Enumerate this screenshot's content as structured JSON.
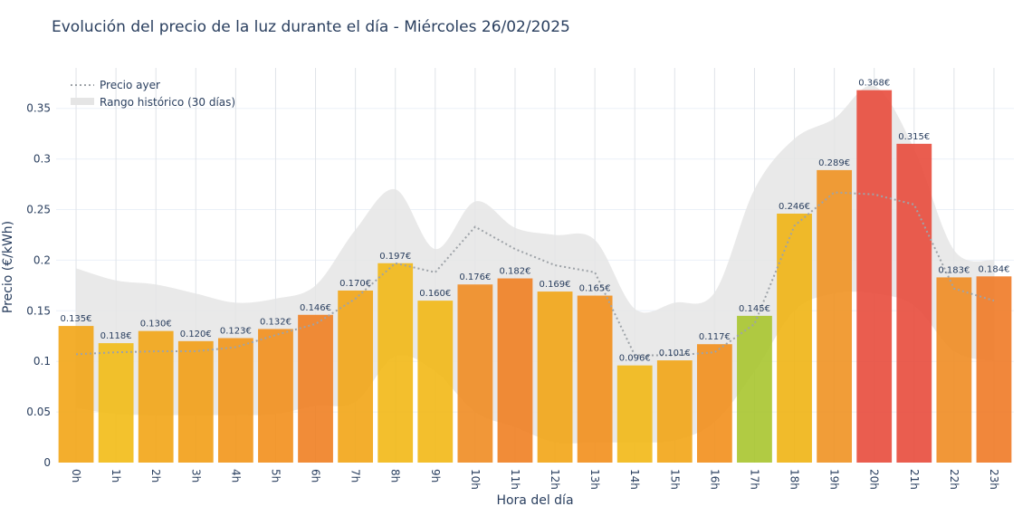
{
  "chart_data": {
    "type": "bar",
    "title": "Evolución del precio de la luz durante el día - Miércoles 26/02/2025",
    "xlabel": "Hora del día",
    "ylabel": "Precio (€/kWh)",
    "categories": [
      "0h",
      "1h",
      "2h",
      "3h",
      "4h",
      "5h",
      "6h",
      "7h",
      "8h",
      "9h",
      "10h",
      "11h",
      "12h",
      "13h",
      "14h",
      "15h",
      "16h",
      "17h",
      "18h",
      "19h",
      "20h",
      "21h",
      "22h",
      "23h"
    ],
    "value_labels": [
      "0.135€",
      "0.118€",
      "0.130€",
      "0.120€",
      "0.123€",
      "0.132€",
      "0.146€",
      "0.170€",
      "0.197€",
      "0.160€",
      "0.176€",
      "0.182€",
      "0.169€",
      "0.165€",
      "0.096€",
      "0.101€",
      "0.117€",
      "0.145€",
      "0.246€",
      "0.289€",
      "0.368€",
      "0.315€",
      "0.183€",
      "0.184€"
    ],
    "ylim": [
      0,
      0.39
    ],
    "yticks": [
      0,
      0.05,
      0.1,
      0.15,
      0.2,
      0.25,
      0.3,
      0.35
    ],
    "ytick_labels": [
      "0",
      "0.05",
      "0.1",
      "0.15",
      "0.2",
      "0.25",
      "0.3",
      "0.35"
    ],
    "grid": true,
    "legend_position": "top-left",
    "series": [
      {
        "kind": "bar",
        "values": [
          0.135,
          0.118,
          0.13,
          0.12,
          0.123,
          0.132,
          0.146,
          0.17,
          0.197,
          0.16,
          0.176,
          0.182,
          0.169,
          0.165,
          0.096,
          0.101,
          0.117,
          0.145,
          0.246,
          0.289,
          0.368,
          0.315,
          0.183,
          0.184
        ],
        "colors": [
          "#f2a516",
          "#f2bb16",
          "#f2a516",
          "#f29e16",
          "#f29619",
          "#f28f1c",
          "#f08022",
          "#f2a516",
          "#f2b816",
          "#f2b816",
          "#f08c22",
          "#f08022",
          "#f2a516",
          "#f28f1c",
          "#f2b816",
          "#f2a516",
          "#f28f1c",
          "#a9c52f",
          "#f0b414",
          "#f09222",
          "#e84b3c",
          "#e84b3c",
          "#f08c22",
          "#f07a26"
        ]
      },
      {
        "kind": "line",
        "name": "Precio ayer",
        "style": "dotted",
        "color": "#9ea3a8",
        "values": [
          0.107,
          0.109,
          0.11,
          0.11,
          0.114,
          0.126,
          0.137,
          0.162,
          0.197,
          0.188,
          0.233,
          0.211,
          0.195,
          0.188,
          0.106,
          0.106,
          0.109,
          0.137,
          0.234,
          0.267,
          0.265,
          0.255,
          0.172,
          0.16
        ]
      },
      {
        "kind": "band",
        "name": "Rango histórico (30 días)",
        "color": "#e5e5e5",
        "upper": [
          0.192,
          0.18,
          0.176,
          0.167,
          0.158,
          0.162,
          0.175,
          0.23,
          0.27,
          0.211,
          0.258,
          0.232,
          0.225,
          0.22,
          0.152,
          0.158,
          0.168,
          0.27,
          0.32,
          0.34,
          0.372,
          0.31,
          0.21,
          0.2
        ],
        "lower": [
          0.054,
          0.048,
          0.047,
          0.047,
          0.047,
          0.048,
          0.056,
          0.06,
          0.105,
          0.09,
          0.05,
          0.035,
          0.02,
          0.02,
          0.02,
          0.022,
          0.04,
          0.09,
          0.15,
          0.167,
          0.167,
          0.155,
          0.11,
          0.1
        ]
      }
    ]
  }
}
